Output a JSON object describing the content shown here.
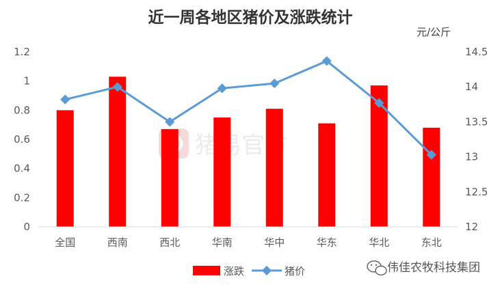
{
  "chart_data": {
    "type": "bar",
    "title": "近一周各地区猪价及涨跌统计",
    "categories": [
      "全国",
      "西南",
      "西北",
      "华南",
      "华中",
      "华东",
      "华北",
      "东北"
    ],
    "series": [
      {
        "name": "涨跌",
        "type": "bar",
        "axis": "left",
        "color": "#ff0000",
        "values": [
          0.8,
          1.03,
          0.67,
          0.75,
          0.81,
          0.71,
          0.97,
          0.68
        ]
      },
      {
        "name": "猪价",
        "type": "line",
        "axis": "right",
        "color": "#5b9bd5",
        "values": [
          13.82,
          14.0,
          13.5,
          13.98,
          14.05,
          14.37,
          13.77,
          13.03
        ]
      }
    ],
    "y_left": {
      "min": 0,
      "max": 1.2,
      "ticks": [
        "0",
        "0.2",
        "0.4",
        "0.6",
        "0.8",
        "1",
        "1.2"
      ]
    },
    "y_right": {
      "min": 12,
      "max": 14.5,
      "unit": "元/公斤",
      "ticks": [
        "12",
        "12.5",
        "13",
        "13.5",
        "14",
        "14.5"
      ]
    },
    "legend": "bottom",
    "grid": false
  },
  "watermark": {
    "background": "猪易官方",
    "footer": "伟佳农牧科技集团",
    "footer_icon": "wechat-icon"
  }
}
